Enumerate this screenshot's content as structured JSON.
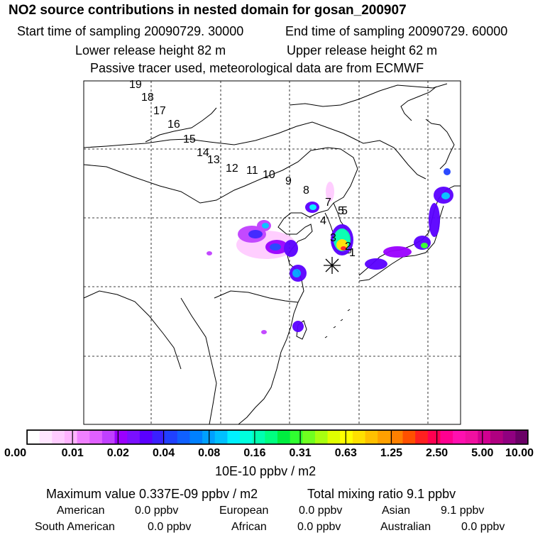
{
  "header": {
    "title": "NO2 source contributions in nested domain for gosan_200907",
    "start": "Start time of sampling 20090729. 30000",
    "end": "End time of sampling 20090729. 60000",
    "lower": "Lower release height   82 m",
    "upper": "Upper release height   62 m",
    "tracer": "Passive tracer used, meteorological data are from ECMWF"
  },
  "map": {
    "trajectory_labels": [
      "19",
      "18",
      "17",
      "16",
      "15",
      "14",
      "13",
      "12",
      "11",
      "10",
      "9",
      "8",
      "7",
      "5",
      "5",
      "4",
      "3",
      "2",
      "1"
    ],
    "receptor_marker": "asterisk"
  },
  "legend": {
    "ticks": [
      "0.00",
      "0.01",
      "0.02",
      "0.04",
      "0.08",
      "0.16",
      "0.31",
      "0.63",
      "1.25",
      "2.50",
      "5.00",
      "10.00"
    ],
    "colors": [
      "#ffffff",
      "#ffe6ff",
      "#ffccff",
      "#ffb3ff",
      "#f080ff",
      "#e060ff",
      "#c040ff",
      "#9a00ff",
      "#7a10ff",
      "#5a00ff",
      "#3a20ff",
      "#2040ff",
      "#1060ff",
      "#0080ff",
      "#00a0ff",
      "#00c0ff",
      "#00f0ff",
      "#00ffdd",
      "#00ffb0",
      "#00ff80",
      "#00ee40",
      "#30ff30",
      "#70ff20",
      "#a8ff10",
      "#e0ff00",
      "#ffff00",
      "#ffe000",
      "#ffc000",
      "#ffa000",
      "#ff8000",
      "#ff5000",
      "#ff2020",
      "#ff0050",
      "#ff0090",
      "#ff10b0",
      "#f010a0",
      "#d00090",
      "#b00080",
      "#900080",
      "#6a0066"
    ],
    "units": "10E-10 ppbv / m2"
  },
  "stats": {
    "max": "Maximum value  0.337E-09 ppbv / m2",
    "total": "Total mixing ratio       9.1 ppbv",
    "rows": [
      [
        {
          "label": "American",
          "value": "0.0 ppbv"
        },
        {
          "label": "European",
          "value": "0.0 ppbv"
        },
        {
          "label": "Asian",
          "value": "9.1 ppbv"
        }
      ],
      [
        {
          "label": "South American",
          "value": "0.0 ppbv"
        },
        {
          "label": "African",
          "value": "0.0 ppbv"
        },
        {
          "label": "Australian",
          "value": "0.0 ppbv"
        }
      ]
    ]
  }
}
